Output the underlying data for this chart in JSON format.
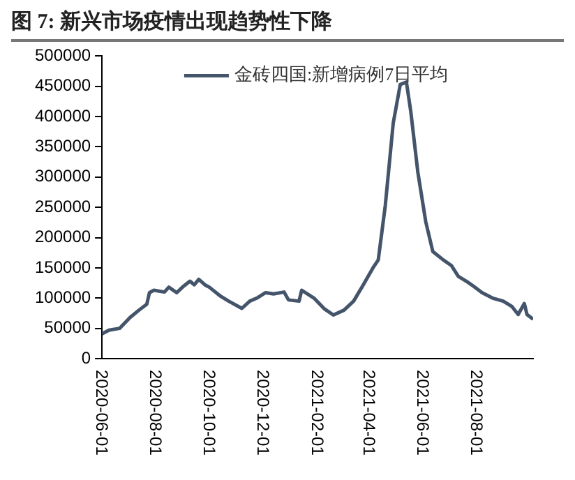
{
  "chart_data": {
    "type": "line",
    "title": "图 7: 新兴市场疫情出现趋势性下降",
    "x": [
      "2020-06-01",
      "2020-06-09",
      "2020-06-21",
      "2020-07-03",
      "2020-07-13",
      "2020-07-22",
      "2020-07-25",
      "2020-07-30",
      "2020-08-11",
      "2020-08-16",
      "2020-08-25",
      "2020-09-02",
      "2020-09-09",
      "2020-09-14",
      "2020-09-19",
      "2020-09-26",
      "2020-10-01",
      "2020-10-13",
      "2020-10-23",
      "2020-11-07",
      "2020-11-16",
      "2020-11-24",
      "2020-12-04",
      "2020-12-13",
      "2020-12-25",
      "2020-12-30",
      "2021-01-11",
      "2021-01-14",
      "2021-01-28",
      "2021-02-09",
      "2021-02-19",
      "2021-03-03",
      "2021-03-14",
      "2021-03-25",
      "2021-04-05",
      "2021-04-11",
      "2021-04-19",
      "2021-04-28",
      "2021-05-06",
      "2021-05-13",
      "2021-05-18",
      "2021-05-26",
      "2021-06-04",
      "2021-06-12",
      "2021-06-24",
      "2021-07-03",
      "2021-07-11",
      "2021-07-21",
      "2021-07-28",
      "2021-08-07",
      "2021-08-19",
      "2021-08-31",
      "2021-09-10",
      "2021-09-17",
      "2021-09-24",
      "2021-09-27",
      "2021-10-04"
    ],
    "series": [
      {
        "name": "金砖四国:新增病例7日平均",
        "color": "#44546a",
        "values": [
          41000,
          47000,
          50000,
          68000,
          80000,
          90000,
          109000,
          113000,
          110000,
          118000,
          109000,
          120000,
          128000,
          122000,
          131000,
          122000,
          118000,
          104000,
          95000,
          83000,
          95000,
          100000,
          109000,
          107000,
          110000,
          97000,
          95000,
          113000,
          100000,
          82000,
          72000,
          80000,
          95000,
          122000,
          150000,
          163000,
          253000,
          389000,
          453000,
          457000,
          408000,
          308000,
          226000,
          177000,
          163000,
          154000,
          136000,
          127000,
          120000,
          109000,
          100000,
          95000,
          86000,
          73000,
          91000,
          73000,
          65000
        ]
      }
    ],
    "xlim": [
      "2020-06-01",
      "2021-10-04"
    ],
    "xticks": [
      "2020-06-01",
      "2020-08-01",
      "2020-10-01",
      "2020-12-01",
      "2021-02-01",
      "2021-04-01",
      "2021-06-01",
      "2021-08-01"
    ],
    "ylim": [
      0,
      500000
    ],
    "yticks": [
      0,
      50000,
      100000,
      150000,
      200000,
      250000,
      300000,
      350000,
      400000,
      450000,
      500000
    ],
    "grid": false,
    "legend": "top",
    "marker": "none",
    "line_style": "solid"
  }
}
